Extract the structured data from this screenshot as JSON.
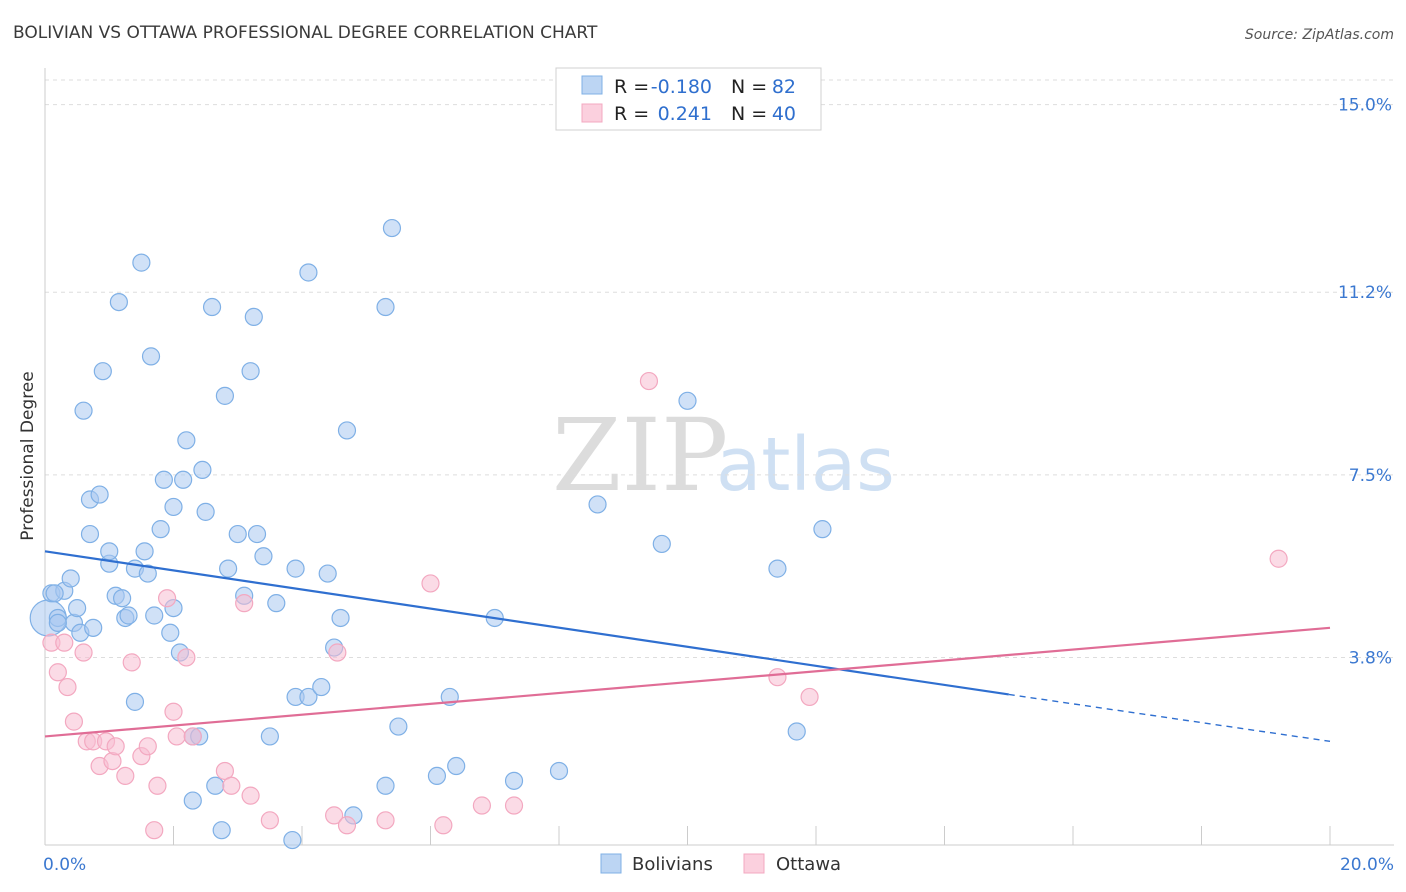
{
  "chart_data": {
    "type": "scatter",
    "title": "BOLIVIAN VS OTTAWA PROFESSIONAL DEGREE CORRELATION CHART",
    "source": "Source: ZipAtlas.com",
    "ylabel": "Professional Degree",
    "xlim": [
      0,
      20
    ],
    "ylim": [
      0,
      15.5
    ],
    "y_ticks": [
      3.8,
      7.5,
      11.2,
      15.0
    ],
    "y_tick_labels": [
      "3.8%",
      "7.5%",
      "11.2%",
      "15.0%"
    ],
    "x_tick_labels": [
      "0.0%",
      "20.0%"
    ],
    "watermark": {
      "zip": "ZIP",
      "atlas": "atlas"
    },
    "legend": {
      "rows": [
        {
          "r_label": "R =",
          "r_value": "-0.180",
          "n_label": "N =",
          "n_value": "82"
        },
        {
          "r_label": "R =",
          "r_value": "0.241",
          "n_label": "N =",
          "n_value": "40"
        }
      ]
    },
    "series": [
      {
        "name": "Bolivians",
        "color": "#7fb0e6",
        "line_color": "#2f6fd0",
        "trend": {
          "x0": 0,
          "y0": 5.95,
          "x1": 15.0,
          "y1": 3.05,
          "x_end_dashed": 20.0,
          "y_end_dashed": 2.1
        },
        "points": [
          [
            0.1,
            5.1
          ],
          [
            0.3,
            5.15
          ],
          [
            0.15,
            5.1
          ],
          [
            0.2,
            4.6
          ],
          [
            0.4,
            5.4
          ],
          [
            0.45,
            4.5
          ],
          [
            0.5,
            4.8
          ],
          [
            0.55,
            4.3
          ],
          [
            0.6,
            8.8
          ],
          [
            0.7,
            7.0
          ],
          [
            0.7,
            6.3
          ],
          [
            0.75,
            4.4
          ],
          [
            0.85,
            7.1
          ],
          [
            0.9,
            9.6
          ],
          [
            1.0,
            5.7
          ],
          [
            1.0,
            5.95
          ],
          [
            1.1,
            5.05
          ],
          [
            1.15,
            11.0
          ],
          [
            1.2,
            5.0
          ],
          [
            1.25,
            4.6
          ],
          [
            1.3,
            4.65
          ],
          [
            1.4,
            2.9
          ],
          [
            1.4,
            5.6
          ],
          [
            1.5,
            11.8
          ],
          [
            1.55,
            5.95
          ],
          [
            1.6,
            5.5
          ],
          [
            1.65,
            9.9
          ],
          [
            1.7,
            4.65
          ],
          [
            1.8,
            6.4
          ],
          [
            1.85,
            7.4
          ],
          [
            1.95,
            4.3
          ],
          [
            2.0,
            4.8
          ],
          [
            2.0,
            6.85
          ],
          [
            2.1,
            3.9
          ],
          [
            2.15,
            7.4
          ],
          [
            2.2,
            8.2
          ],
          [
            2.3,
            2.2
          ],
          [
            2.3,
            0.9
          ],
          [
            2.4,
            2.2
          ],
          [
            2.45,
            7.6
          ],
          [
            2.5,
            6.75
          ],
          [
            2.6,
            10.9
          ],
          [
            2.65,
            1.2
          ],
          [
            2.75,
            0.3
          ],
          [
            2.8,
            9.1
          ],
          [
            2.85,
            5.6
          ],
          [
            3.0,
            6.3
          ],
          [
            3.1,
            5.05
          ],
          [
            3.2,
            9.6
          ],
          [
            3.25,
            10.7
          ],
          [
            3.3,
            6.3
          ],
          [
            3.4,
            5.85
          ],
          [
            3.5,
            2.2
          ],
          [
            3.6,
            4.9
          ],
          [
            3.85,
            0.1
          ],
          [
            3.9,
            5.6
          ],
          [
            3.9,
            3.0
          ],
          [
            4.1,
            3.0
          ],
          [
            4.1,
            11.6
          ],
          [
            4.3,
            3.2
          ],
          [
            4.4,
            5.5
          ],
          [
            4.5,
            4.0
          ],
          [
            4.6,
            4.6
          ],
          [
            4.7,
            8.4
          ],
          [
            4.8,
            0.6
          ],
          [
            5.3,
            1.2
          ],
          [
            5.3,
            10.9
          ],
          [
            5.4,
            12.5
          ],
          [
            5.5,
            2.4
          ],
          [
            6.1,
            1.4
          ],
          [
            6.3,
            3.0
          ],
          [
            6.4,
            1.6
          ],
          [
            7.0,
            4.6
          ],
          [
            7.3,
            1.3
          ],
          [
            8.0,
            1.5
          ],
          [
            8.6,
            6.9
          ],
          [
            9.6,
            6.1
          ],
          [
            10.0,
            9.0
          ],
          [
            11.4,
            5.6
          ],
          [
            11.7,
            2.3
          ],
          [
            12.1,
            6.4
          ],
          [
            0.2,
            4.5
          ]
        ],
        "big_points": [
          [
            0.05,
            4.6
          ]
        ]
      },
      {
        "name": "Ottawa",
        "color": "#f3a8c0",
        "line_color": "#e06d96",
        "trend": {
          "x0": 0,
          "y0": 2.2,
          "x1": 20.0,
          "y1": 4.4
        },
        "points": [
          [
            0.1,
            4.1
          ],
          [
            0.2,
            3.5
          ],
          [
            0.3,
            4.1
          ],
          [
            0.35,
            3.2
          ],
          [
            0.45,
            2.5
          ],
          [
            0.6,
            3.9
          ],
          [
            0.65,
            2.1
          ],
          [
            0.75,
            2.1
          ],
          [
            0.85,
            1.6
          ],
          [
            0.95,
            2.1
          ],
          [
            1.05,
            1.7
          ],
          [
            1.1,
            2.0
          ],
          [
            1.25,
            1.4
          ],
          [
            1.35,
            3.7
          ],
          [
            1.5,
            1.8
          ],
          [
            1.6,
            2.0
          ],
          [
            1.7,
            0.3
          ],
          [
            1.75,
            1.2
          ],
          [
            1.9,
            5.0
          ],
          [
            2.0,
            2.7
          ],
          [
            2.05,
            2.2
          ],
          [
            2.2,
            3.8
          ],
          [
            2.3,
            2.2
          ],
          [
            2.8,
            1.5
          ],
          [
            2.9,
            1.2
          ],
          [
            3.1,
            4.9
          ],
          [
            3.2,
            1.0
          ],
          [
            3.5,
            0.5
          ],
          [
            4.5,
            0.6
          ],
          [
            4.55,
            3.9
          ],
          [
            4.7,
            0.4
          ],
          [
            5.3,
            0.5
          ],
          [
            6.0,
            5.3
          ],
          [
            6.2,
            0.4
          ],
          [
            6.8,
            0.8
          ],
          [
            7.3,
            0.8
          ],
          [
            9.4,
            9.4
          ],
          [
            11.4,
            3.4
          ],
          [
            11.9,
            3.0
          ],
          [
            19.2,
            5.8
          ]
        ]
      }
    ]
  }
}
